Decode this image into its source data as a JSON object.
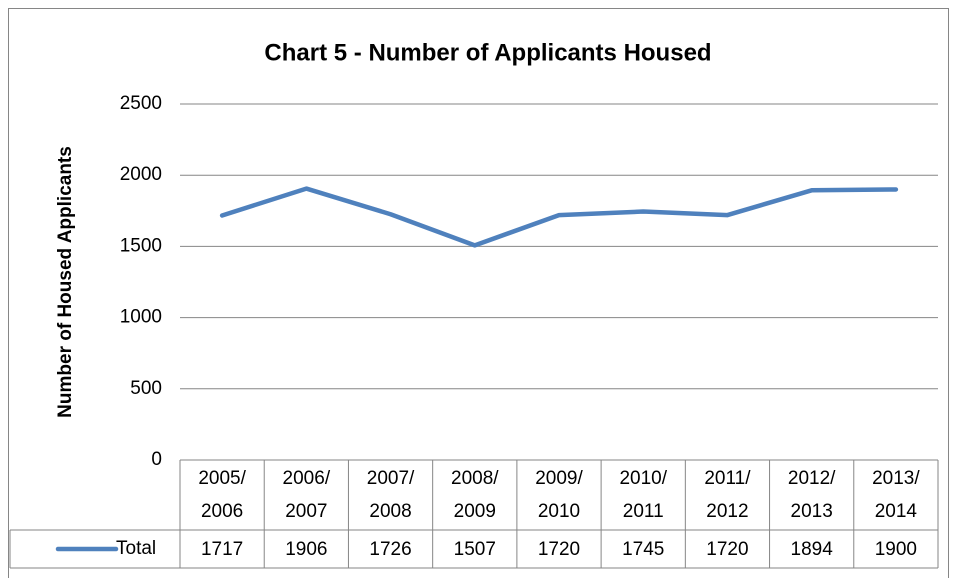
{
  "chart_data": {
    "type": "line",
    "title": "Chart 5 - Number of Applicants Housed",
    "y_label": "Number of Housed Applicants",
    "categories": [
      "2005/2006",
      "2006/2007",
      "2007/2008",
      "2008/2009",
      "2009/2010",
      "2010/2011",
      "2011/2012",
      "2012/2013",
      "2013/2014"
    ],
    "series": [
      {
        "name": "Total",
        "color": "#4f81bd",
        "values": [
          1717,
          1906,
          1726,
          1507,
          1720,
          1745,
          1720,
          1894,
          1900
        ]
      }
    ],
    "ylim": [
      0,
      2500
    ],
    "yticks": [
      0,
      500,
      1000,
      1500,
      2000,
      2500
    ],
    "grid": true,
    "data_table": true
  }
}
